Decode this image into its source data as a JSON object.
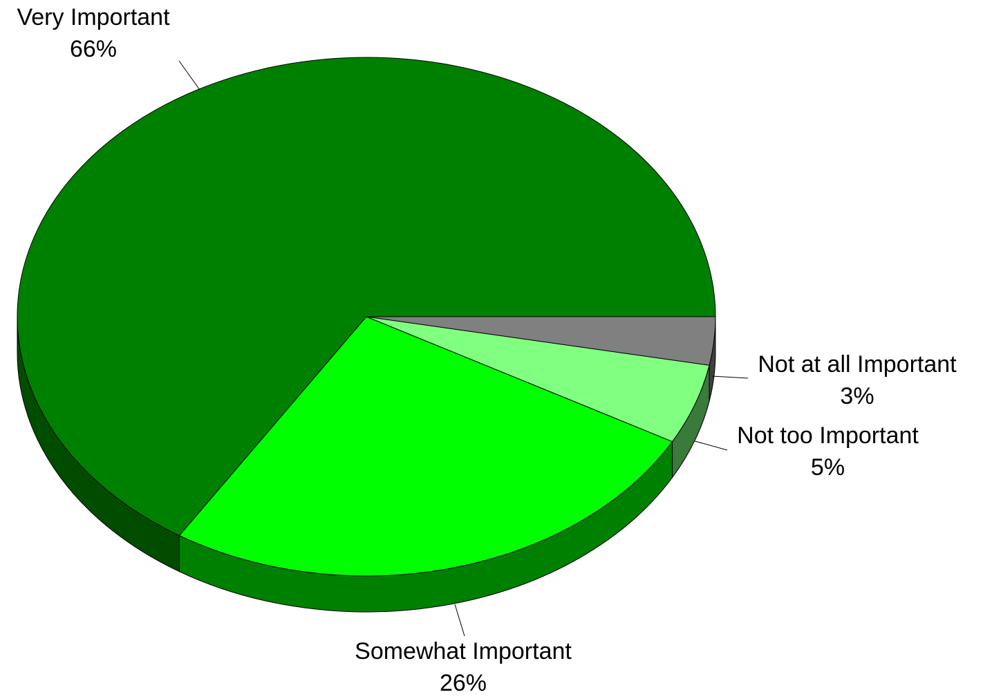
{
  "chart_data": {
    "type": "pie",
    "style": "3d",
    "slices": [
      {
        "label": "Very Important",
        "value": 66,
        "display": "66%",
        "color": "#008000",
        "side_color": "#004d00"
      },
      {
        "label": "Somewhat Important",
        "value": 26,
        "display": "26%",
        "color": "#00ff00",
        "side_color": "#008000"
      },
      {
        "label": "Not too Important",
        "value": 5,
        "display": "5%",
        "color": "#80ff80",
        "side_color": "#3a7a3a"
      },
      {
        "label": "Not at all Important",
        "value": 3,
        "display": "3%",
        "color": "#808080",
        "side_color": "#404040"
      }
    ]
  }
}
